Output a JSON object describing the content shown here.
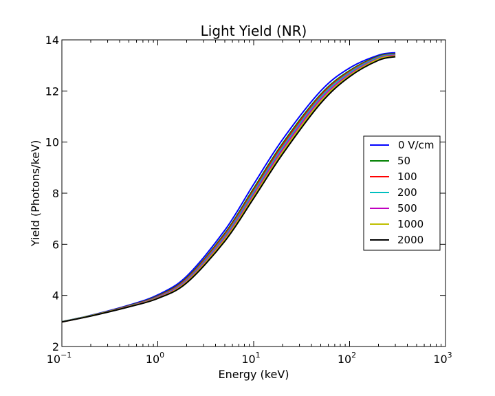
{
  "chart_data": {
    "type": "line",
    "title": "Light Yield (NR)",
    "xlabel": "Energy (keV)",
    "ylabel": "Yield (Photons/keV)",
    "xscale": "log",
    "xlim": [
      0.1,
      1000
    ],
    "ylim": [
      2,
      14
    ],
    "grid": false,
    "legend_position": "center-right",
    "x_ticks": [
      {
        "value": 0.1,
        "base": "10",
        "exp": "−1"
      },
      {
        "value": 1,
        "base": "10",
        "exp": "0"
      },
      {
        "value": 10,
        "base": "10",
        "exp": "1"
      },
      {
        "value": 100,
        "base": "10",
        "exp": "2"
      },
      {
        "value": 1000,
        "base": "10",
        "exp": "3"
      }
    ],
    "y_ticks": [
      "2",
      "4",
      "6",
      "8",
      "10",
      "12",
      "14"
    ],
    "x": [
      0.1,
      0.2,
      0.5,
      1,
      2,
      5,
      10,
      20,
      50,
      100,
      200,
      300
    ],
    "series": [
      {
        "name": "0 V/cm",
        "color": "#0000ff",
        "values": [
          2.97,
          3.22,
          3.62,
          4.02,
          4.75,
          6.55,
          8.35,
          10.1,
          12.0,
          12.9,
          13.4,
          13.5
        ]
      },
      {
        "name": "50",
        "color": "#008000",
        "values": [
          2.97,
          3.21,
          3.6,
          3.98,
          4.68,
          6.43,
          8.19,
          9.95,
          11.87,
          12.8,
          13.36,
          13.46
        ]
      },
      {
        "name": "100",
        "color": "#ff0000",
        "values": [
          2.97,
          3.21,
          3.59,
          3.96,
          4.65,
          6.38,
          8.12,
          9.88,
          11.82,
          12.76,
          13.34,
          13.44
        ]
      },
      {
        "name": "200",
        "color": "#00bfbf",
        "values": [
          2.97,
          3.21,
          3.58,
          3.94,
          4.61,
          6.32,
          8.05,
          9.8,
          11.76,
          12.72,
          13.32,
          13.42
        ]
      },
      {
        "name": "500",
        "color": "#bf00bf",
        "values": [
          2.96,
          3.2,
          3.57,
          3.92,
          4.57,
          6.25,
          7.96,
          9.71,
          11.68,
          12.66,
          13.28,
          13.4
        ]
      },
      {
        "name": "1000",
        "color": "#bfbf00",
        "values": [
          2.96,
          3.2,
          3.56,
          3.9,
          4.53,
          6.19,
          7.88,
          9.62,
          11.6,
          12.61,
          13.25,
          13.37
        ]
      },
      {
        "name": "2000",
        "color": "#000000",
        "values": [
          2.96,
          3.19,
          3.55,
          3.88,
          4.49,
          6.12,
          7.8,
          9.53,
          11.52,
          12.56,
          13.2,
          13.34
        ]
      }
    ]
  }
}
